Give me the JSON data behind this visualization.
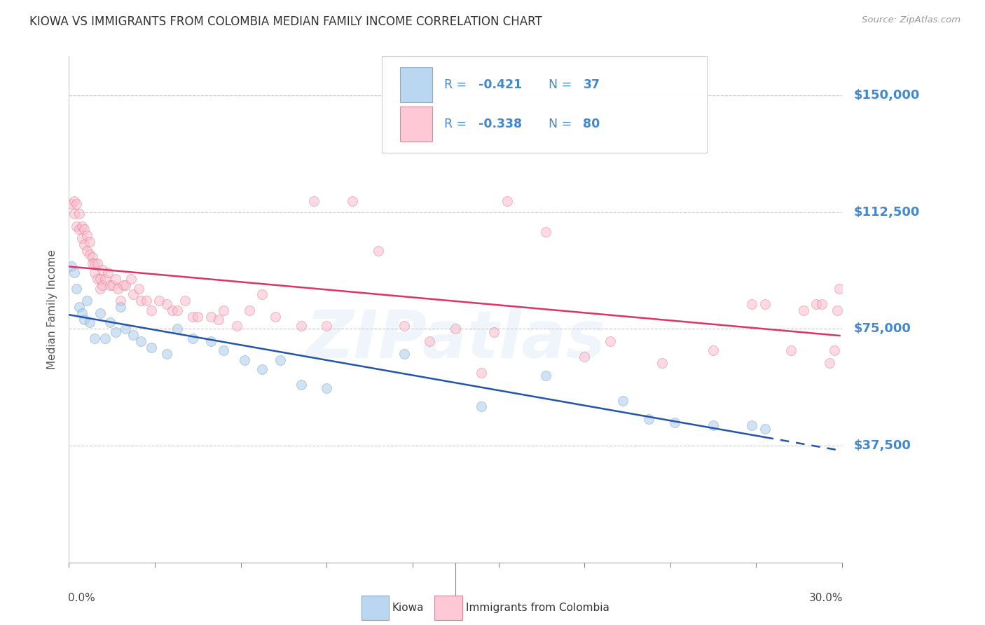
{
  "title": "KIOWA VS IMMIGRANTS FROM COLOMBIA MEDIAN FAMILY INCOME CORRELATION CHART",
  "source": "Source: ZipAtlas.com",
  "ylabel": "Median Family Income",
  "ytick_values": [
    37500,
    75000,
    112500,
    150000
  ],
  "ytick_labels": [
    "$37,500",
    "$75,000",
    "$112,500",
    "$150,000"
  ],
  "ymin": 0,
  "ymax": 162500,
  "xmin": 0.0,
  "xmax": 0.3,
  "watermark": "ZIPatlas",
  "background_color": "#ffffff",
  "grid_color": "#cccccc",
  "ytick_color": "#4488cc",
  "title_color": "#333333",
  "kiowa_color": "#aaccee",
  "colombia_color": "#ffbbcc",
  "kiowa_line_color": "#2255aa",
  "colombia_line_color": "#dd3366",
  "kiowa_edge_color": "#7799bb",
  "colombia_edge_color": "#cc7788",
  "R_kiowa": -0.421,
  "N_kiowa": 37,
  "R_colombia": -0.338,
  "N_colombia": 80,
  "marker_size": 100,
  "marker_alpha": 0.55,
  "line_width": 1.8,
  "legend_text_color": "#4488cc",
  "kiowa_points_x": [
    0.001,
    0.002,
    0.003,
    0.004,
    0.005,
    0.006,
    0.007,
    0.008,
    0.01,
    0.012,
    0.014,
    0.016,
    0.018,
    0.02,
    0.022,
    0.025,
    0.028,
    0.032,
    0.038,
    0.042,
    0.048,
    0.055,
    0.06,
    0.068,
    0.075,
    0.082,
    0.09,
    0.1,
    0.13,
    0.16,
    0.185,
    0.215,
    0.225,
    0.235,
    0.25,
    0.265,
    0.27
  ],
  "kiowa_points_y": [
    95000,
    93000,
    88000,
    82000,
    80000,
    78000,
    84000,
    77000,
    72000,
    80000,
    72000,
    77000,
    74000,
    82000,
    75000,
    73000,
    71000,
    69000,
    67000,
    75000,
    72000,
    71000,
    68000,
    65000,
    62000,
    65000,
    57000,
    56000,
    67000,
    50000,
    60000,
    52000,
    46000,
    45000,
    44000,
    44000,
    43000
  ],
  "colombia_points_x": [
    0.001,
    0.002,
    0.002,
    0.003,
    0.003,
    0.004,
    0.004,
    0.005,
    0.005,
    0.006,
    0.006,
    0.007,
    0.007,
    0.008,
    0.008,
    0.009,
    0.009,
    0.01,
    0.01,
    0.011,
    0.011,
    0.012,
    0.012,
    0.013,
    0.013,
    0.014,
    0.015,
    0.016,
    0.017,
    0.018,
    0.019,
    0.02,
    0.021,
    0.022,
    0.024,
    0.025,
    0.027,
    0.028,
    0.03,
    0.032,
    0.035,
    0.038,
    0.04,
    0.042,
    0.045,
    0.048,
    0.05,
    0.055,
    0.058,
    0.06,
    0.065,
    0.07,
    0.075,
    0.08,
    0.09,
    0.095,
    0.1,
    0.11,
    0.12,
    0.13,
    0.14,
    0.15,
    0.16,
    0.165,
    0.17,
    0.185,
    0.2,
    0.21,
    0.23,
    0.25,
    0.265,
    0.27,
    0.28,
    0.285,
    0.29,
    0.292,
    0.295,
    0.297,
    0.298,
    0.299
  ],
  "colombia_points_y": [
    115000,
    116000,
    112000,
    115000,
    108000,
    112000,
    107000,
    108000,
    104000,
    107000,
    102000,
    105000,
    100000,
    103000,
    99000,
    98000,
    96000,
    96000,
    93000,
    96000,
    91000,
    91000,
    88000,
    89000,
    94000,
    91000,
    93000,
    89000,
    89000,
    91000,
    88000,
    84000,
    89000,
    89000,
    91000,
    86000,
    88000,
    84000,
    84000,
    81000,
    84000,
    83000,
    81000,
    81000,
    84000,
    79000,
    79000,
    79000,
    78000,
    81000,
    76000,
    81000,
    86000,
    79000,
    76000,
    116000,
    76000,
    116000,
    100000,
    76000,
    71000,
    75000,
    61000,
    74000,
    116000,
    106000,
    66000,
    71000,
    64000,
    68000,
    83000,
    83000,
    68000,
    81000,
    83000,
    83000,
    64000,
    68000,
    81000,
    88000
  ]
}
